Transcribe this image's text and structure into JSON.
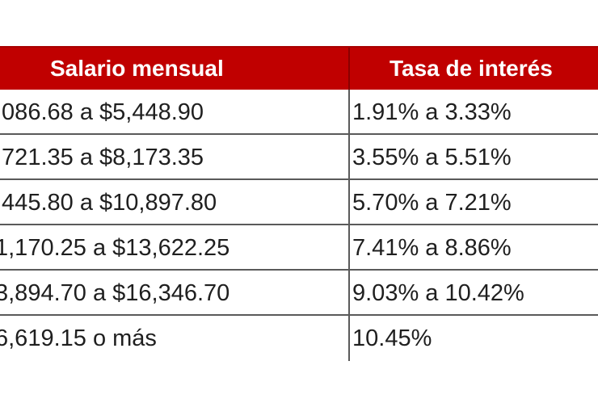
{
  "table": {
    "headers": [
      "Salario mensual",
      "Tasa de interés"
    ],
    "rows": [
      {
        "salario": ",086.68 a $5,448.90",
        "tasa": "1.91% a 3.33%"
      },
      {
        "salario": ",721.35 a $8,173.35",
        "tasa": "3.55% a 5.51%"
      },
      {
        "salario": ",445.80 a $10,897.80",
        "tasa": "5.70% a 7.21%"
      },
      {
        "salario": "1,170.25 a $13,622.25",
        "tasa": "7.41% a 8.86%"
      },
      {
        "salario": "3,894.70 a $16,346.70",
        "tasa": "9.03% a 10.42%"
      },
      {
        "salario": "6,619.15 o más",
        "tasa": "10.45%"
      }
    ],
    "header_color": "#c00000",
    "header_text_color": "#ffffff"
  }
}
